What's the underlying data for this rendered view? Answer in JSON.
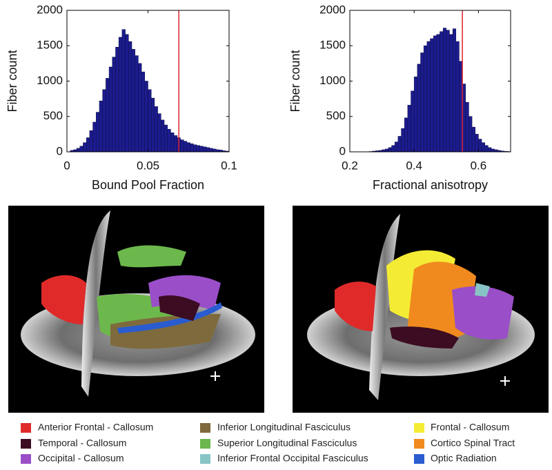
{
  "chart_data": [
    {
      "type": "histogram",
      "xlabel": "Bound Pool Fraction",
      "ylabel": "Fiber count",
      "bins": [
        0.002,
        0.004,
        0.006,
        0.008,
        0.01,
        0.012,
        0.014,
        0.016,
        0.018,
        0.02,
        0.022,
        0.024,
        0.026,
        0.028,
        0.03,
        0.032,
        0.034,
        0.036,
        0.038,
        0.04,
        0.042,
        0.044,
        0.046,
        0.048,
        0.05,
        0.052,
        0.054,
        0.056,
        0.058,
        0.06,
        0.062,
        0.064,
        0.066,
        0.068,
        0.07,
        0.072,
        0.074,
        0.076,
        0.078,
        0.08,
        0.082,
        0.084,
        0.086,
        0.088,
        0.09,
        0.092,
        0.094,
        0.096,
        0.098,
        0.1
      ],
      "values": [
        20,
        30,
        50,
        80,
        130,
        200,
        300,
        420,
        560,
        720,
        880,
        1040,
        1200,
        1340,
        1480,
        1620,
        1730,
        1660,
        1560,
        1450,
        1360,
        1250,
        1130,
        1000,
        880,
        760,
        640,
        540,
        450,
        380,
        320,
        270,
        230,
        200,
        170,
        150,
        130,
        115,
        100,
        90,
        80,
        70,
        60,
        50,
        40,
        30,
        25,
        15,
        10
      ],
      "color": "#1c1c8e",
      "threshold": 0.069,
      "threshold_color": "#e0202a",
      "xlim": [
        0,
        0.1
      ],
      "xticks": [
        0,
        0.05,
        0.1
      ],
      "ylim": [
        0,
        2000
      ],
      "yticks": [
        0,
        500,
        1000,
        1500,
        2000
      ]
    },
    {
      "type": "histogram",
      "xlabel": "Fractional anisotropy",
      "ylabel": "Fiber count",
      "bins": [
        0.26,
        0.27,
        0.28,
        0.29,
        0.3,
        0.31,
        0.32,
        0.33,
        0.34,
        0.35,
        0.36,
        0.37,
        0.38,
        0.39,
        0.4,
        0.41,
        0.42,
        0.43,
        0.44,
        0.45,
        0.46,
        0.47,
        0.48,
        0.49,
        0.5,
        0.51,
        0.52,
        0.53,
        0.54,
        0.55,
        0.56,
        0.57,
        0.58,
        0.59,
        0.6,
        0.61,
        0.62,
        0.63,
        0.64,
        0.65,
        0.66,
        0.67,
        0.68,
        0.69,
        0.7
      ],
      "values": [
        5,
        10,
        15,
        20,
        30,
        40,
        60,
        90,
        140,
        220,
        330,
        480,
        660,
        860,
        1060,
        1240,
        1400,
        1500,
        1560,
        1600,
        1640,
        1660,
        1700,
        1750,
        1720,
        1660,
        1740,
        1560,
        1280,
        960,
        700,
        500,
        350,
        250,
        180,
        130,
        90,
        60,
        40,
        30,
        20,
        12,
        8,
        5
      ],
      "color": "#1c1c8e",
      "threshold": 0.55,
      "threshold_color": "#e0202a",
      "xlim": [
        0.2,
        0.7
      ],
      "xticks": [
        0.2,
        0.4,
        0.6
      ],
      "ylim": [
        0,
        2000
      ],
      "yticks": [
        0,
        500,
        1000,
        1500,
        2000
      ]
    }
  ],
  "figure_legend": {
    "items": [
      {
        "label": "Anterior Frontal - Callosum",
        "color": "#e02a2a"
      },
      {
        "label": "Temporal - Callosum",
        "color": "#3c0c22"
      },
      {
        "label": "Occipital - Callosum",
        "color": "#9a4ec8"
      },
      {
        "label": "Inferior Longitudinal Fasciculus",
        "color": "#7e6a3c"
      },
      {
        "label": "Superior Longitudinal Fasciculus",
        "color": "#6cb84c"
      },
      {
        "label": "Inferior Frontal Occipital Fasciculus",
        "color": "#88c4c6"
      },
      {
        "label": "Frontal - Callosum",
        "color": "#f4ec34"
      },
      {
        "label": "Cortico Spinal Tract",
        "color": "#f08a1e"
      },
      {
        "label": "Optic Radiation",
        "color": "#2a5cd0"
      }
    ]
  }
}
